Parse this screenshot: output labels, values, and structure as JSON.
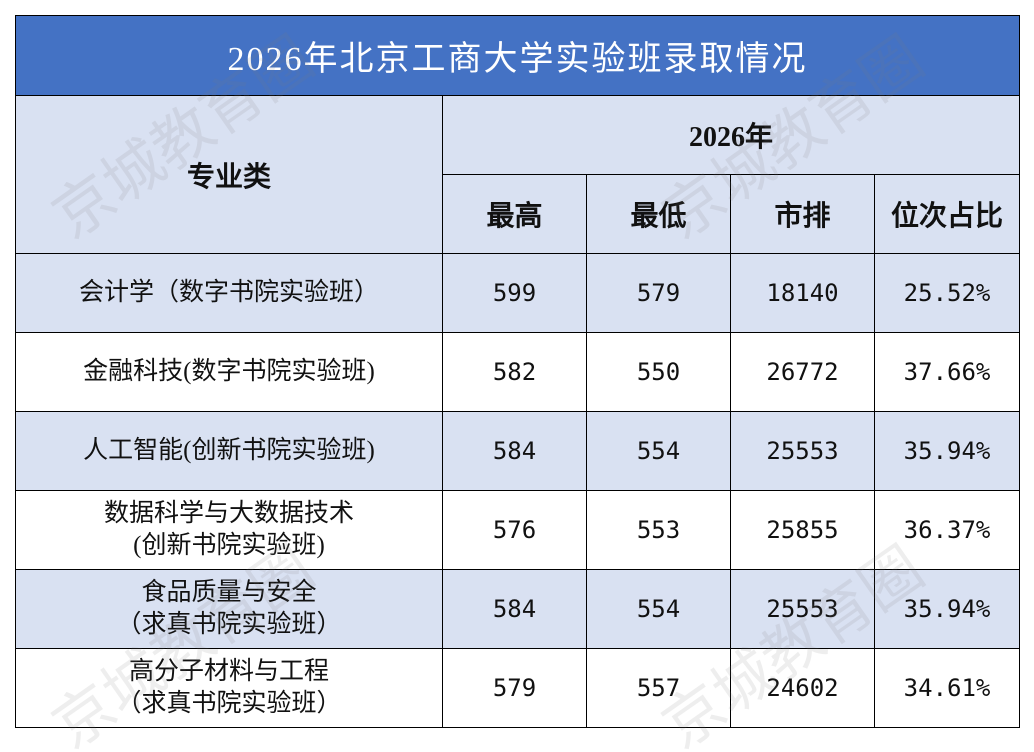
{
  "title": "2026年北京工商大学实验班录取情况",
  "watermark": "京城教育圈",
  "table": {
    "header": {
      "category": "专业类",
      "year": "2026年",
      "columns": [
        "最高",
        "最低",
        "市排",
        "位次占比"
      ]
    },
    "rows": [
      [
        [
          "会计学（数字书院实验班）"
        ],
        599,
        579,
        18140,
        "25.52%"
      ],
      [
        [
          "金融科技(数字书院实验班)"
        ],
        582,
        550,
        26772,
        "37.66%"
      ],
      [
        [
          "人工智能(创新书院实验班)"
        ],
        584,
        554,
        25553,
        "35.94%"
      ],
      [
        [
          "数据科学与大数据技术",
          "(创新书院实验班)"
        ],
        576,
        553,
        25855,
        "36.37%"
      ],
      [
        [
          "食品质量与安全",
          "（求真书院实验班）"
        ],
        584,
        554,
        25553,
        "35.94%"
      ],
      [
        [
          "高分子材料与工程",
          "（求真书院实验班）"
        ],
        579,
        557,
        24602,
        "34.61%"
      ]
    ]
  }
}
